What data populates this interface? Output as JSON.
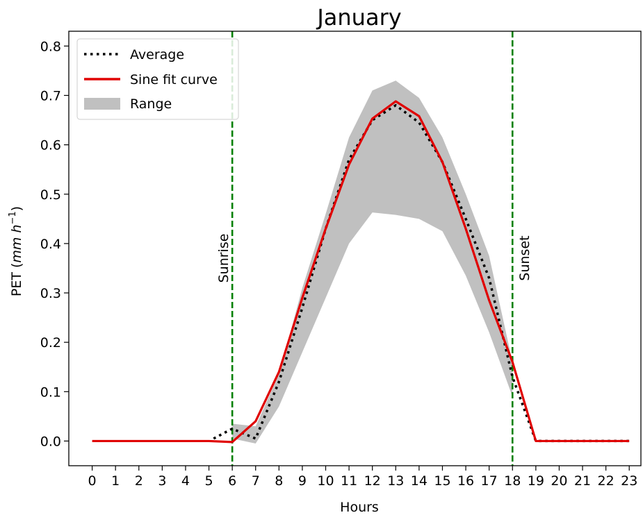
{
  "chart_data": {
    "type": "line",
    "title": "January",
    "xlabel": "Hours",
    "ylabel_main": "PET (",
    "ylabel_unit": "mm h",
    "ylabel_exp": "−1",
    "ylabel_close": ")",
    "xlim": [
      -1,
      23.5
    ],
    "ylim": [
      -0.05,
      0.83
    ],
    "x": [
      0,
      1,
      2,
      3,
      4,
      5,
      6,
      7,
      8,
      9,
      10,
      11,
      12,
      13,
      14,
      15,
      16,
      17,
      18,
      19,
      20,
      21,
      22,
      23
    ],
    "xticks": [
      "0",
      "1",
      "2",
      "3",
      "4",
      "5",
      "6",
      "7",
      "8",
      "9",
      "10",
      "11",
      "12",
      "13",
      "14",
      "15",
      "16",
      "17",
      "18",
      "19",
      "20",
      "21",
      "22",
      "23"
    ],
    "yticks": [
      "0.0",
      "0.1",
      "0.2",
      "0.3",
      "0.4",
      "0.5",
      "0.6",
      "0.7",
      "0.8"
    ],
    "ytick_values": [
      0.0,
      0.1,
      0.2,
      0.3,
      0.4,
      0.5,
      0.6,
      0.7,
      0.8
    ],
    "series": [
      {
        "name": "Average",
        "style": "dotted",
        "color": "#000000",
        "x": [
          5.2,
          6,
          7,
          8,
          9,
          10,
          11,
          12,
          13,
          14,
          15,
          16,
          17,
          18,
          19,
          20,
          21,
          22,
          23
        ],
        "values": [
          0.005,
          0.025,
          0.005,
          0.12,
          0.27,
          0.43,
          0.57,
          0.65,
          0.68,
          0.645,
          0.565,
          0.45,
          0.33,
          0.13,
          0.0,
          0.0,
          0.0,
          0.0,
          0.0
        ]
      },
      {
        "name": "Sine fit curve",
        "style": "solid",
        "color": "#e00000",
        "values": [
          0,
          0,
          0,
          0,
          0,
          0,
          -0.002,
          0.04,
          0.14,
          0.29,
          0.43,
          0.56,
          0.653,
          0.688,
          0.658,
          0.565,
          0.43,
          0.285,
          0.16,
          0.0,
          0.0,
          0.0,
          0.0,
          0.0
        ]
      }
    ],
    "range": {
      "name": "Range",
      "color": "#c0c0c0",
      "x": [
        6,
        7,
        8,
        9,
        10,
        11,
        12,
        13,
        14,
        15,
        16,
        17,
        18
      ],
      "lower": [
        0.005,
        -0.005,
        0.07,
        0.18,
        0.29,
        0.4,
        0.463,
        0.458,
        0.45,
        0.425,
        0.335,
        0.22,
        0.09
      ],
      "upper": [
        0.035,
        0.03,
        0.135,
        0.31,
        0.46,
        0.615,
        0.71,
        0.73,
        0.695,
        0.615,
        0.5,
        0.375,
        0.16
      ]
    },
    "vlines": [
      {
        "x": 6,
        "label": "Sunrise",
        "color": "#008000"
      },
      {
        "x": 18,
        "label": "Sunset",
        "color": "#008000"
      }
    ],
    "legend_position": "top-left",
    "grid": false
  }
}
